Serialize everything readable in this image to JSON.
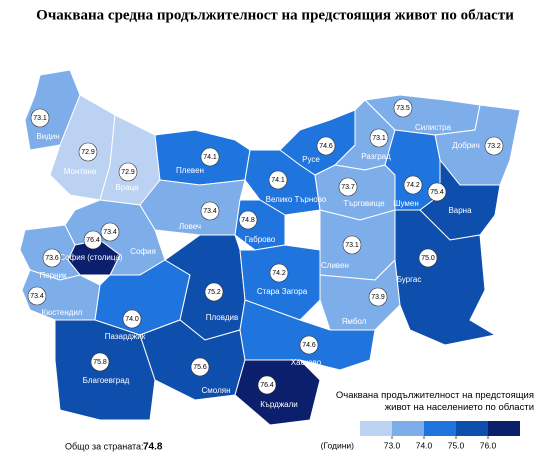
{
  "title": "Очаквана средна продължителност на предстоящия живот по области",
  "regions": [
    {
      "name": "Видин",
      "value": 73.1
    },
    {
      "name": "Монтана",
      "value": 72.9
    },
    {
      "name": "Враца",
      "value": 72.9
    },
    {
      "name": "Плевен",
      "value": 74.1
    },
    {
      "name": "Ловеч",
      "value": 73.4
    },
    {
      "name": "Велико Търново",
      "value": 74.1
    },
    {
      "name": "Габрово",
      "value": 74.8
    },
    {
      "name": "Русе",
      "value": 74.6
    },
    {
      "name": "Разград",
      "value": 73.1
    },
    {
      "name": "Силистра",
      "value": 73.5
    },
    {
      "name": "Добрич",
      "value": 73.2
    },
    {
      "name": "Търговище",
      "value": 73.7
    },
    {
      "name": "Шумен",
      "value": 74.2
    },
    {
      "name": "Варна",
      "value": 75.4
    },
    {
      "name": "София",
      "value": 73.4
    },
    {
      "name": "София (столица)",
      "value": 76.4
    },
    {
      "name": "Перник",
      "value": 73.6
    },
    {
      "name": "Кюстендил",
      "value": 73.4
    },
    {
      "name": "Пазарджик",
      "value": 74,
      "value_label": "74.0"
    },
    {
      "name": "Пловдив",
      "value": 75.2
    },
    {
      "name": "Стара Загора",
      "value": 74.2
    },
    {
      "name": "Сливен",
      "value": 73.1
    },
    {
      "name": "Ямбол",
      "value": 73.9
    },
    {
      "name": "Бургас",
      "value": 75,
      "value_label": "75.0"
    },
    {
      "name": "Благоевград",
      "value": 75.8
    },
    {
      "name": "Смолян",
      "value": 75.6
    },
    {
      "name": "Хасково",
      "value": 74.6
    },
    {
      "name": "Кърджали",
      "value": 76.4
    }
  ],
  "legend": {
    "title": "Очаквана продължителност на предстоящия живот на населението по области",
    "unit": "(Години)",
    "ticks": [
      {
        "value": 73,
        "label": "73.0"
      },
      {
        "value": 74,
        "label": "74.0"
      },
      {
        "value": 75,
        "label": "75.0"
      },
      {
        "value": 76,
        "label": "76.0"
      }
    ],
    "colors": [
      "#bcd2f3",
      "#7eaeea",
      "#1f74dd",
      "#0e4eac",
      "#0b1f6c"
    ]
  },
  "total": {
    "label": "Общо за страната:",
    "value": 74.8
  }
}
